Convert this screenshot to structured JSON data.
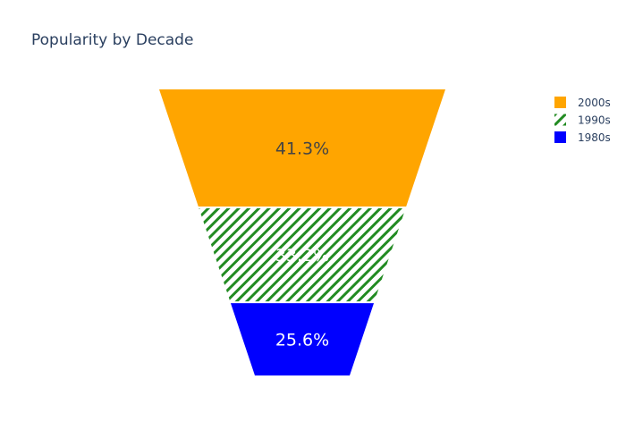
{
  "chart_data": {
    "type": "funnelarea",
    "title": "Popularity by Decade",
    "segments": [
      {
        "name": "2000s",
        "percent": 41.3,
        "label": "41.3%",
        "color": "#FFA500",
        "pattern": "solid",
        "text_color": "#444444"
      },
      {
        "name": "1990s",
        "percent": 33.2,
        "label": "33.2%",
        "color": "#228B22",
        "pattern": "diagonal-hatch",
        "text_color": "#ffffff"
      },
      {
        "name": "1980s",
        "percent": 25.6,
        "label": "25.6%",
        "color": "#0000FF",
        "pattern": "solid",
        "text_color": "#ffffff"
      }
    ],
    "legend": {
      "position": "top-right"
    }
  }
}
